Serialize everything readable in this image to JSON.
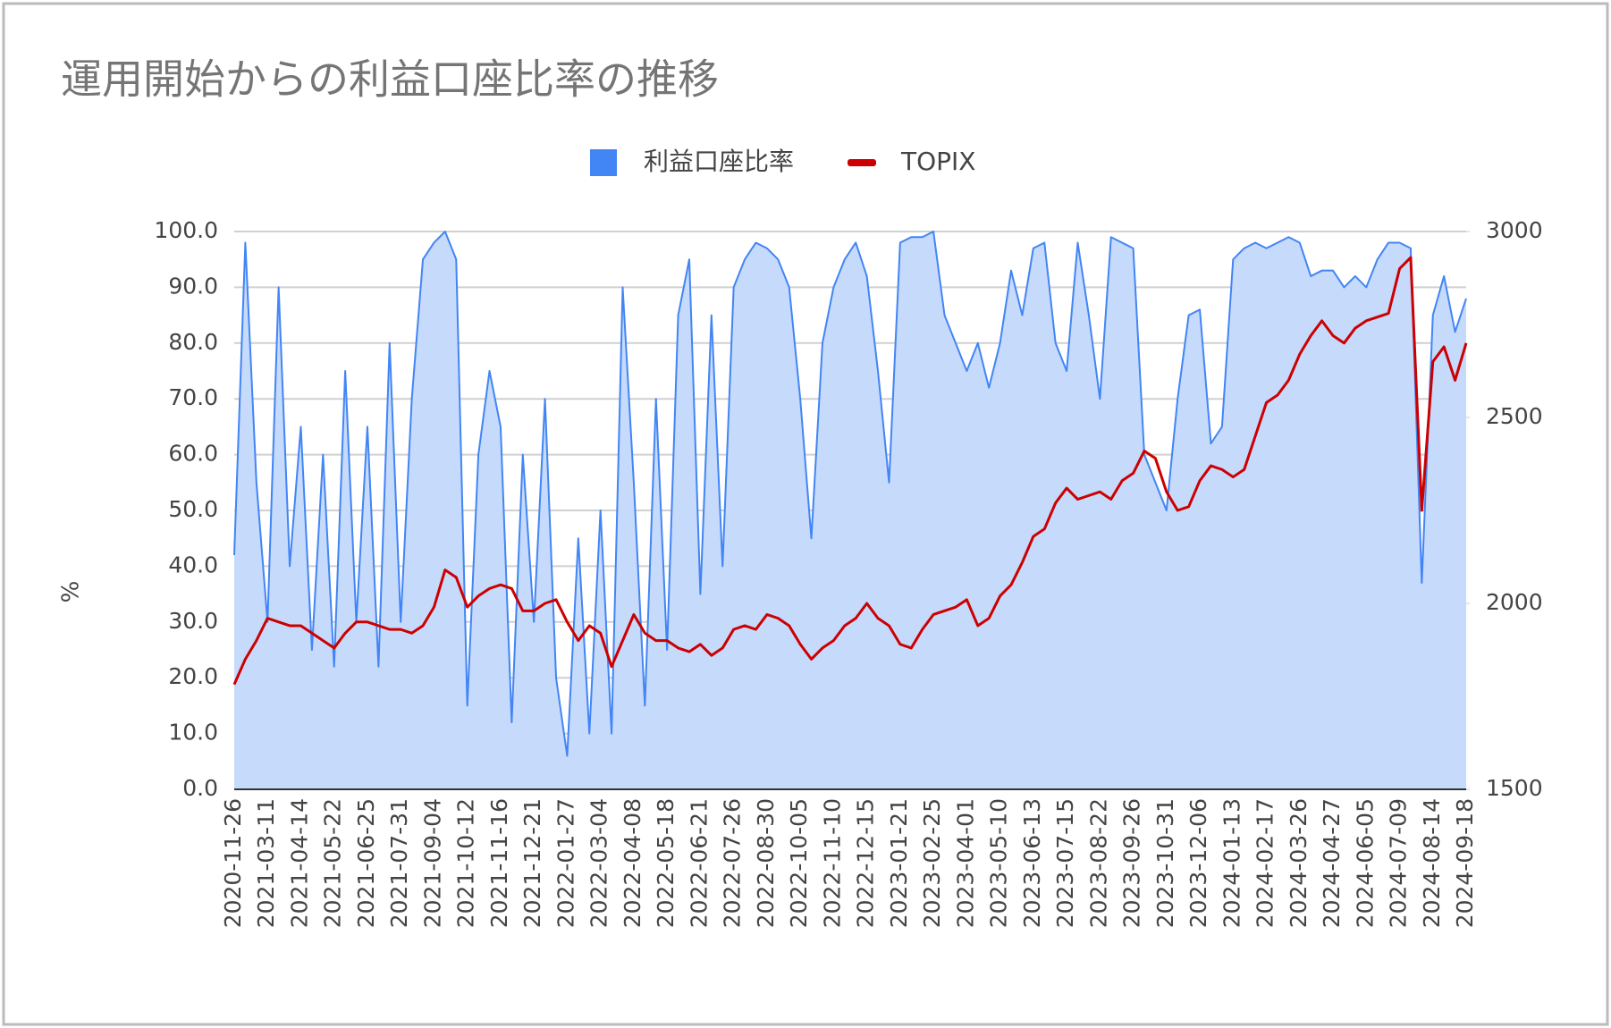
{
  "chart_data": {
    "type": "line",
    "title": "運用開始からの利益口座比率の推移",
    "ylabel": "%",
    "categories": [
      "2020-11-26",
      null,
      null,
      "2021-03-11",
      null,
      null,
      "2021-04-14",
      null,
      null,
      "2021-05-22",
      null,
      null,
      "2021-06-25",
      null,
      null,
      "2021-07-31",
      null,
      null,
      "2021-09-04",
      null,
      null,
      "2021-10-12",
      null,
      null,
      "2021-11-16",
      null,
      null,
      "2021-12-21",
      null,
      null,
      "2022-01-27",
      null,
      null,
      "2022-03-04",
      null,
      null,
      "2022-04-08",
      null,
      null,
      "2022-05-18",
      null,
      null,
      "2022-06-21",
      null,
      null,
      "2022-07-26",
      null,
      null,
      "2022-08-30",
      null,
      null,
      "2022-10-05",
      null,
      null,
      "2022-11-10",
      null,
      null,
      "2022-12-15",
      null,
      null,
      "2023-01-21",
      null,
      null,
      "2023-02-25",
      null,
      null,
      "2023-04-01",
      null,
      null,
      "2023-05-10",
      null,
      null,
      "2023-06-13",
      null,
      null,
      "2023-07-15",
      null,
      null,
      "2023-08-22",
      null,
      null,
      "2023-09-26",
      null,
      null,
      "2023-10-31",
      null,
      null,
      "2023-12-06",
      null,
      null,
      "2024-01-13",
      null,
      null,
      "2024-02-17",
      null,
      null,
      "2024-03-26",
      null,
      null,
      "2024-04-27",
      null,
      null,
      "2024-06-05",
      null,
      null,
      "2024-07-09",
      null,
      null,
      "2024-08-14",
      null,
      null,
      "2024-09-18"
    ],
    "series": [
      {
        "name": "利益口座比率",
        "type": "area",
        "color": "#4285f4",
        "fill": "#c6dafc",
        "values": [
          42,
          98,
          55,
          30,
          90,
          40,
          65,
          25,
          60,
          22,
          75,
          30,
          65,
          22,
          80,
          30,
          70,
          95,
          98,
          100,
          95,
          15,
          60,
          75,
          65,
          12,
          60,
          30,
          70,
          20,
          6,
          45,
          10,
          50,
          10,
          90,
          55,
          15,
          70,
          25,
          85,
          95,
          35,
          85,
          40,
          90,
          95,
          98,
          97,
          95,
          90,
          70,
          45,
          80,
          90,
          95,
          98,
          92,
          75,
          55,
          98,
          99,
          99,
          100,
          85,
          80,
          75,
          80,
          72,
          80,
          93,
          85,
          97,
          98,
          80,
          75,
          98,
          85,
          70,
          99,
          98,
          97,
          60,
          55,
          50,
          70,
          85,
          86,
          62,
          65,
          95,
          97,
          98,
          97,
          98,
          99,
          98,
          92,
          93,
          93,
          90,
          92,
          90,
          95,
          98,
          98,
          97,
          37,
          85,
          92,
          82,
          88
        ]
      },
      {
        "name": "TOPIX",
        "type": "line",
        "axis": "y2",
        "color": "#cc0000",
        "values": [
          1782,
          1850,
          1900,
          1960,
          1950,
          1940,
          1940,
          1920,
          1900,
          1880,
          1920,
          1950,
          1950,
          1940,
          1930,
          1930,
          1920,
          1940,
          1990,
          2090,
          2070,
          1990,
          2020,
          2040,
          2050,
          2040,
          1980,
          1980,
          2000,
          2010,
          1950,
          1900,
          1940,
          1920,
          1830,
          1900,
          1970,
          1920,
          1900,
          1900,
          1880,
          1870,
          1890,
          1860,
          1880,
          1930,
          1940,
          1930,
          1970,
          1960,
          1940,
          1890,
          1850,
          1880,
          1900,
          1940,
          1960,
          2000,
          1960,
          1940,
          1890,
          1880,
          1930,
          1970,
          1980,
          1990,
          2010,
          1940,
          1960,
          2020,
          2050,
          2110,
          2180,
          2200,
          2270,
          2310,
          2280,
          2290,
          2300,
          2280,
          2330,
          2350,
          2410,
          2390,
          2300,
          2250,
          2260,
          2330,
          2370,
          2360,
          2340,
          2360,
          2450,
          2540,
          2560,
          2600,
          2670,
          2720,
          2760,
          2720,
          2700,
          2740,
          2760,
          2770,
          2780,
          2900,
          2930,
          2250,
          2650,
          2690,
          2600,
          2700
        ]
      }
    ],
    "ylim": [
      0,
      100
    ],
    "yticks": [
      {
        "value": 0,
        "label": "0.0"
      },
      {
        "value": 10,
        "label": "10.0"
      },
      {
        "value": 20,
        "label": "20.0"
      },
      {
        "value": 30,
        "label": "30.0"
      },
      {
        "value": 40,
        "label": "40.0"
      },
      {
        "value": 50,
        "label": "50.0"
      },
      {
        "value": 60,
        "label": "60.0"
      },
      {
        "value": 70,
        "label": "70.0"
      },
      {
        "value": 80,
        "label": "80.0"
      },
      {
        "value": 90,
        "label": "90.0"
      },
      {
        "value": 100,
        "label": "100.0"
      }
    ],
    "y2lim": [
      1500,
      3000
    ],
    "y2ticks": [
      1500,
      2000,
      2500,
      3000
    ],
    "grid": true,
    "legend": "top"
  }
}
